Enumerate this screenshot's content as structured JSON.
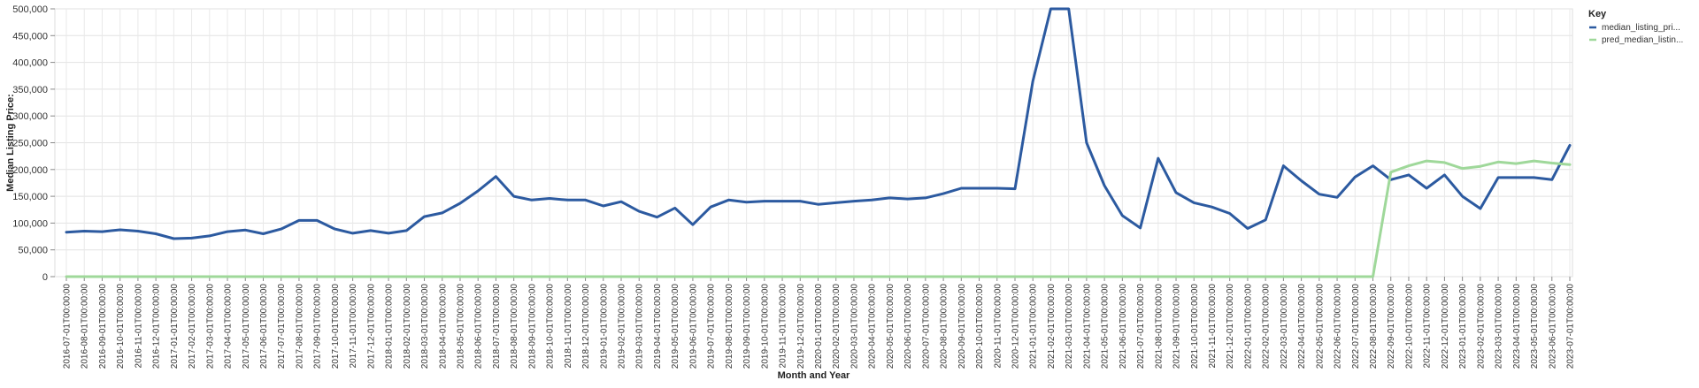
{
  "chart_data": {
    "type": "line",
    "xlabel": "Month and Year",
    "ylabel": "Median Listing Price:",
    "ylim": [
      0,
      500000
    ],
    "yticks": [
      0,
      50000,
      100000,
      150000,
      200000,
      250000,
      300000,
      350000,
      400000,
      450000,
      500000
    ],
    "ytick_labels": [
      "0",
      "50,000",
      "100,000",
      "150,000",
      "200,000",
      "250,000",
      "300,000",
      "350,000",
      "400,000",
      "450,000",
      "500,000"
    ],
    "grid": true,
    "legend": {
      "title": "Key",
      "position": "right"
    },
    "categories": [
      "2016-07-01T00:00:00",
      "2016-08-01T00:00:00",
      "2016-09-01T00:00:00",
      "2016-10-01T00:00:00",
      "2016-11-01T00:00:00",
      "2016-12-01T00:00:00",
      "2017-01-01T00:00:00",
      "2017-02-01T00:00:00",
      "2017-03-01T00:00:00",
      "2017-04-01T00:00:00",
      "2017-05-01T00:00:00",
      "2017-06-01T00:00:00",
      "2017-07-01T00:00:00",
      "2017-08-01T00:00:00",
      "2017-09-01T00:00:00",
      "2017-10-01T00:00:00",
      "2017-11-01T00:00:00",
      "2017-12-01T00:00:00",
      "2018-01-01T00:00:00",
      "2018-02-01T00:00:00",
      "2018-03-01T00:00:00",
      "2018-04-01T00:00:00",
      "2018-05-01T00:00:00",
      "2018-06-01T00:00:00",
      "2018-07-01T00:00:00",
      "2018-08-01T00:00:00",
      "2018-09-01T00:00:00",
      "2018-10-01T00:00:00",
      "2018-11-01T00:00:00",
      "2018-12-01T00:00:00",
      "2019-01-01T00:00:00",
      "2019-02-01T00:00:00",
      "2019-03-01T00:00:00",
      "2019-04-01T00:00:00",
      "2019-05-01T00:00:00",
      "2019-06-01T00:00:00",
      "2019-07-01T00:00:00",
      "2019-08-01T00:00:00",
      "2019-09-01T00:00:00",
      "2019-10-01T00:00:00",
      "2019-11-01T00:00:00",
      "2019-12-01T00:00:00",
      "2020-01-01T00:00:00",
      "2020-02-01T00:00:00",
      "2020-03-01T00:00:00",
      "2020-04-01T00:00:00",
      "2020-05-01T00:00:00",
      "2020-06-01T00:00:00",
      "2020-07-01T00:00:00",
      "2020-08-01T00:00:00",
      "2020-09-01T00:00:00",
      "2020-10-01T00:00:00",
      "2020-11-01T00:00:00",
      "2020-12-01T00:00:00",
      "2021-01-01T00:00:00",
      "2021-02-01T00:00:00",
      "2021-03-01T00:00:00",
      "2021-04-01T00:00:00",
      "2021-05-01T00:00:00",
      "2021-06-01T00:00:00",
      "2021-07-01T00:00:00",
      "2021-08-01T00:00:00",
      "2021-09-01T00:00:00",
      "2021-10-01T00:00:00",
      "2021-11-01T00:00:00",
      "2021-12-01T00:00:00",
      "2022-01-01T00:00:00",
      "2022-02-01T00:00:00",
      "2022-03-01T00:00:00",
      "2022-04-01T00:00:00",
      "2022-05-01T00:00:00",
      "2022-06-01T00:00:00",
      "2022-07-01T00:00:00",
      "2022-08-01T00:00:00",
      "2022-09-01T00:00:00",
      "2022-10-01T00:00:00",
      "2022-11-01T00:00:00",
      "2022-12-01T00:00:00",
      "2023-01-01T00:00:00",
      "2023-02-01T00:00:00",
      "2023-03-01T00:00:00",
      "2023-04-01T00:00:00",
      "2023-05-01T00:00:00",
      "2023-06-01T00:00:00",
      "2023-07-01T00:00:00"
    ],
    "series": [
      {
        "name": "median_listing_pri...",
        "color": "#2c5aa0",
        "values": [
          83000,
          85000,
          84000,
          87500,
          85000,
          80000,
          71000,
          72000,
          76000,
          84000,
          87000,
          80000,
          89000,
          105000,
          105000,
          89000,
          81000,
          86000,
          81000,
          86000,
          112000,
          119000,
          137000,
          160000,
          187000,
          150000,
          143000,
          146000,
          143000,
          143000,
          132000,
          140000,
          122000,
          111000,
          128000,
          97000,
          130000,
          143000,
          139000,
          141000,
          141000,
          141000,
          135000,
          138000,
          141000,
          143000,
          147000,
          145000,
          147000,
          155000,
          165000,
          165000,
          165000,
          164000,
          365000,
          500000,
          500000,
          250000,
          170000,
          114000,
          91000,
          221000,
          157000,
          138000,
          130000,
          118000,
          90000,
          106000,
          207000,
          179000,
          154000,
          148000,
          186000,
          207000,
          181000,
          190000,
          165000,
          190000,
          150000,
          127000,
          185000,
          185000,
          185000,
          181000,
          245000
        ]
      },
      {
        "name": "pred_median_listin...",
        "color": "#9fd89a",
        "values": [
          0,
          0,
          0,
          0,
          0,
          0,
          0,
          0,
          0,
          0,
          0,
          0,
          0,
          0,
          0,
          0,
          0,
          0,
          0,
          0,
          0,
          0,
          0,
          0,
          0,
          0,
          0,
          0,
          0,
          0,
          0,
          0,
          0,
          0,
          0,
          0,
          0,
          0,
          0,
          0,
          0,
          0,
          0,
          0,
          0,
          0,
          0,
          0,
          0,
          0,
          0,
          0,
          0,
          0,
          0,
          0,
          0,
          0,
          0,
          0,
          0,
          0,
          0,
          0,
          0,
          0,
          0,
          0,
          0,
          0,
          0,
          0,
          0,
          0,
          195000,
          207000,
          216000,
          213000,
          202000,
          206000,
          214000,
          211000,
          216000,
          212000,
          209000
        ]
      }
    ]
  }
}
